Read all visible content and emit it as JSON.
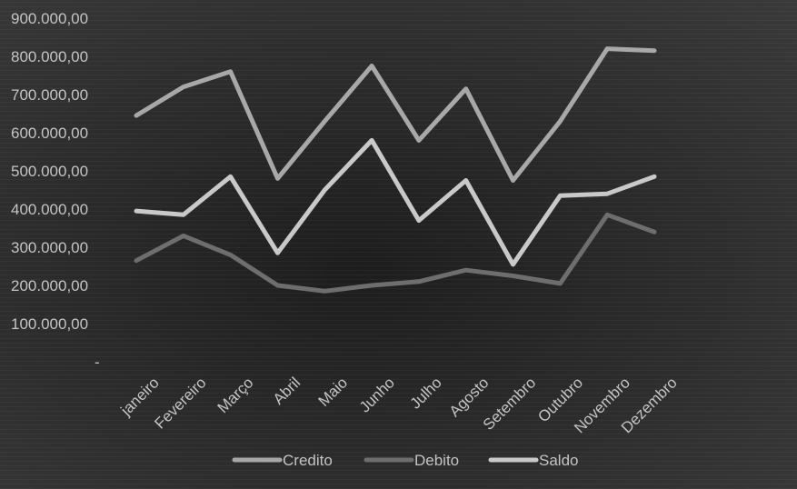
{
  "chart_data": {
    "type": "line",
    "title": "",
    "xlabel": "",
    "ylabel": "",
    "categories": [
      "janeiro",
      "Fevereiro",
      "Março",
      "Abril",
      "Maio",
      "Junho",
      "Julho",
      "Agosto",
      "Setembro",
      "Outubro",
      "Novembro",
      "Dezembro"
    ],
    "y_ticks": [
      "-",
      "100.000,00",
      "200.000,00",
      "300.000,00",
      "400.000,00",
      "500.000,00",
      "600.000,00",
      "700.000,00",
      "800.000,00",
      "900.000,00"
    ],
    "ylim": [
      0,
      900000
    ],
    "grid": false,
    "legend_position": "bottom",
    "series": [
      {
        "name": "Credito",
        "color": "#a8a8a8",
        "values": [
          645000,
          720000,
          760000,
          480000,
          630000,
          775000,
          580000,
          715000,
          475000,
          630000,
          820000,
          815000
        ]
      },
      {
        "name": "Debito",
        "color": "#6e6e6e",
        "values": [
          265000,
          330000,
          280000,
          200000,
          185000,
          200000,
          210000,
          240000,
          225000,
          205000,
          385000,
          340000
        ]
      },
      {
        "name": "Saldo",
        "color": "#c9c9c9",
        "values": [
          395000,
          385000,
          485000,
          285000,
          450000,
          580000,
          370000,
          475000,
          255000,
          435000,
          440000,
          485000
        ]
      }
    ]
  }
}
